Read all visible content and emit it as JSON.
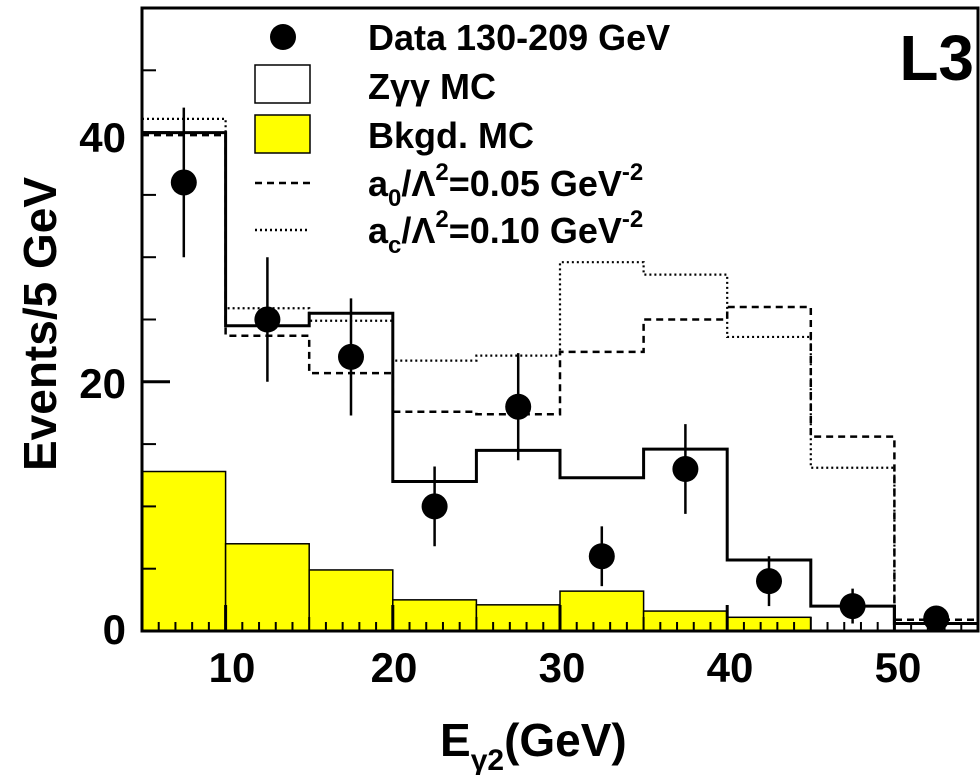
{
  "chart_data": {
    "type": "histogram",
    "xlabel": "E",
    "xlabel_subscript": "γ2",
    "xlabel_unit": "(GeV)",
    "ylabel": "Events/5 GeV",
    "xlim": [
      5,
      55
    ],
    "ylim": [
      0,
      50
    ],
    "x_ticks": [
      10,
      20,
      30,
      40,
      50
    ],
    "y_ticks": [
      0,
      20,
      40
    ],
    "brand_label": "L3",
    "bin_edges": [
      5,
      10,
      15,
      20,
      25,
      30,
      35,
      40,
      45,
      50,
      55
    ],
    "series": [
      {
        "name": "Zγγ MC",
        "kind": "step-solid",
        "values": [
          40,
          24.5,
          25.5,
          12,
          14.5,
          12.3,
          14.6,
          5.7,
          2,
          0.6
        ]
      },
      {
        "name": "Bkgd. MC",
        "kind": "filled",
        "color": "#ffff00",
        "values": [
          12.8,
          7.0,
          4.9,
          2.5,
          2.1,
          3.2,
          1.6,
          1.1,
          0,
          0
        ]
      },
      {
        "name": "a0/Λ2=0.05 GeV-2",
        "kind": "step-dashed",
        "values": [
          39.8,
          23.7,
          20.7,
          17.6,
          17.4,
          22.4,
          25,
          26,
          15.6,
          0.9
        ]
      },
      {
        "name": "ac/Λ2=0.10 GeV-2",
        "kind": "step-dotted",
        "values": [
          41.1,
          25.9,
          24.9,
          21.7,
          22.1,
          29.6,
          28.6,
          23.6,
          13.1,
          0.6
        ]
      }
    ],
    "data_points": {
      "name": "Data 130-209 GeV",
      "x": [
        7.5,
        12.5,
        17.5,
        22.5,
        27.5,
        32.5,
        37.5,
        42.5,
        47.5,
        52.5
      ],
      "y": [
        36,
        25,
        22,
        10,
        18,
        6,
        13,
        4,
        2,
        1
      ],
      "err": [
        6,
        5,
        4.7,
        3.2,
        4.3,
        2.4,
        3.6,
        2,
        1.4,
        0
      ]
    }
  },
  "legend": {
    "data": "Data 130-209 GeV",
    "zgg_main": "Zγγ MC",
    "bkgd": "Bkgd. MC",
    "a0_prefix": "a",
    "a0_sub": "0",
    "a0_slash": "/Λ",
    "a0_sup2": "2",
    "a0_value": "=0.05 GeV",
    "a0_sup_unit": "-2",
    "ac_prefix": "a",
    "ac_sub": "c",
    "ac_slash": "/Λ",
    "ac_sup2": "2",
    "ac_value": "=0.10 GeV",
    "ac_sup_unit": "-2"
  },
  "colors": {
    "background": "#ffffff",
    "axes": "#000000",
    "background_mc_fill": "#ffff00"
  }
}
